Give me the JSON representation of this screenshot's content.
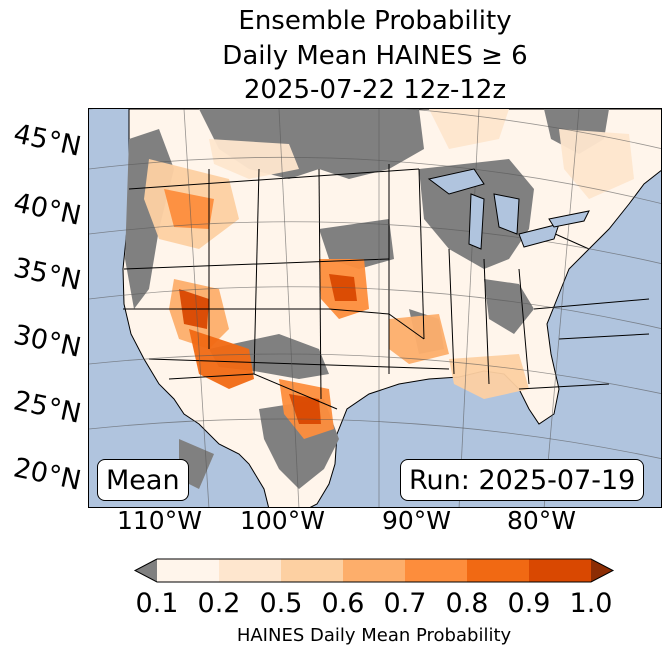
{
  "title": {
    "line1": "Ensemble Probability",
    "line2": "Daily Mean HAINES ≥ 6",
    "line3": "2025-07-22 12z-12z"
  },
  "map": {
    "lat_labels": [
      "45°N",
      "40°N",
      "35°N",
      "30°N",
      "25°N",
      "20°N"
    ],
    "lon_labels": [
      "110°W",
      "100°W",
      "90°W",
      "80°W"
    ],
    "mean_box": "Mean",
    "run_box": "Run: 2025-07-19",
    "colors": {
      "ocean": "#b0c4de",
      "no_data": "#808080",
      "borders": "#000000"
    }
  },
  "colorbar": {
    "label": "HAINES Daily Mean Probability",
    "ticks": [
      "0.1",
      "0.2",
      "0.5",
      "0.6",
      "0.7",
      "0.8",
      "0.9",
      "1.0"
    ],
    "colors": [
      "#fff5eb",
      "#fee6ce",
      "#fdd0a2",
      "#fdae6b",
      "#fd8d3c",
      "#f16913",
      "#d94801"
    ],
    "under_color": "#808080",
    "over_color": "#8c2d04"
  }
}
